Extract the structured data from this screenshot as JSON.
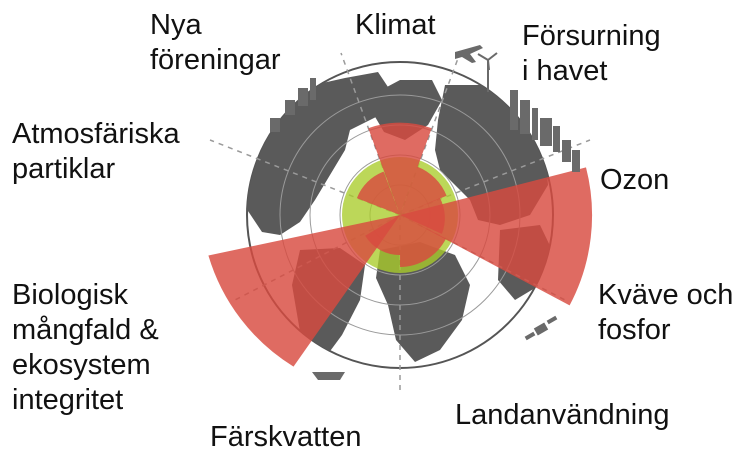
{
  "colors": {
    "ocean": "#ffffff",
    "land": "#5a5a5a",
    "ring_line": "#9a9a9a",
    "boundary_exceeded": "#d84a3f",
    "safe_zone": "#a9cc2a"
  },
  "labels": {
    "klimat": "Klimat",
    "forsurning": [
      "Försurning",
      "i havet"
    ],
    "ozon": "Ozon",
    "kvave": [
      "Kväve och",
      "fosfor"
    ],
    "landanvandning": "Landanvändning",
    "farskvatten": "Färskvatten",
    "biologisk": [
      "Biologisk",
      "mångfald &",
      "ekosystem",
      "integritet"
    ],
    "atmosfariska": [
      "Atmosfäriska",
      "partiklar"
    ],
    "nya": [
      "Nya",
      "föreningar"
    ]
  },
  "icons": {
    "skyline": "city-skyline-icon",
    "airplane": "airplane-icon",
    "satellite": "satellite-icon",
    "ship": "ship-icon",
    "wind": "wind-turbine-icon"
  }
}
